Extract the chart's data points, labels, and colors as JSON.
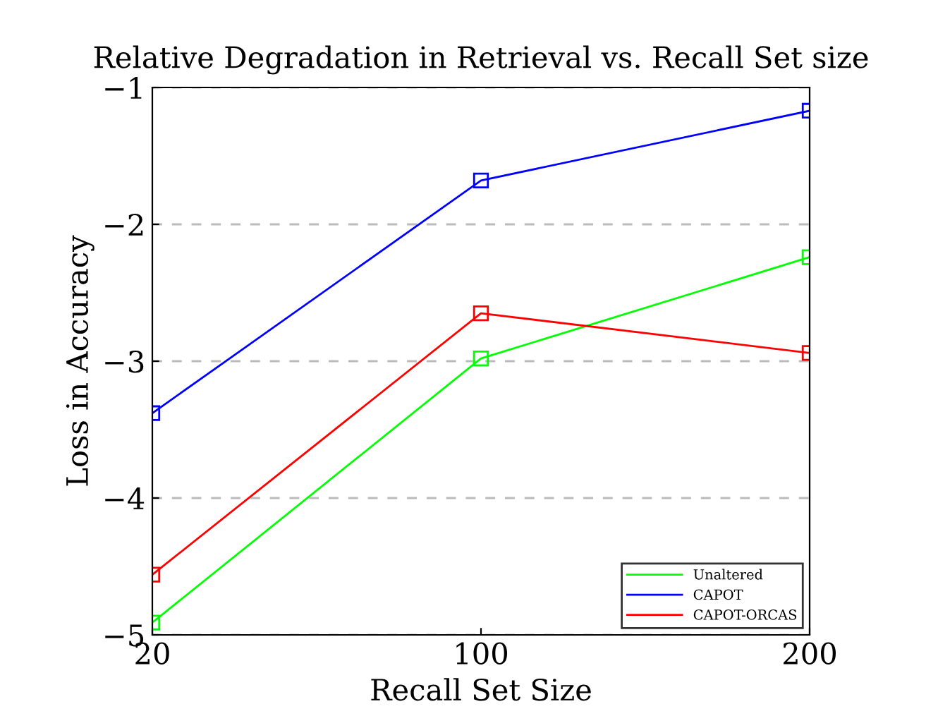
{
  "chart_data": {
    "type": "line",
    "title": "Relative Degradation in Retrieval vs. Recall Set size",
    "xlabel": "Recall Set Size",
    "ylabel": "Loss in Accuracy",
    "categories": [
      "20",
      "100",
      "200"
    ],
    "series": [
      {
        "name": "Unaltered",
        "color": "#00ff00",
        "values": [
          -4.91,
          -2.98,
          -2.24
        ]
      },
      {
        "name": "CAPOT",
        "color": "#0000ff",
        "values": [
          -3.38,
          -1.68,
          -1.17
        ]
      },
      {
        "name": "CAPOT-ORCAS",
        "color": "#ff0000",
        "values": [
          -4.56,
          -2.65,
          -2.94
        ]
      }
    ],
    "ylim": [
      -5,
      -1
    ],
    "yticks": [
      {
        "value": -5,
        "label": "−5"
      },
      {
        "value": -4,
        "label": "−4"
      },
      {
        "value": -3,
        "label": "−3"
      },
      {
        "value": -2,
        "label": "−2"
      },
      {
        "value": -1,
        "label": "−1"
      }
    ],
    "grid": "y",
    "legend": "bottom right",
    "marker": "square",
    "line_style": "solid"
  }
}
